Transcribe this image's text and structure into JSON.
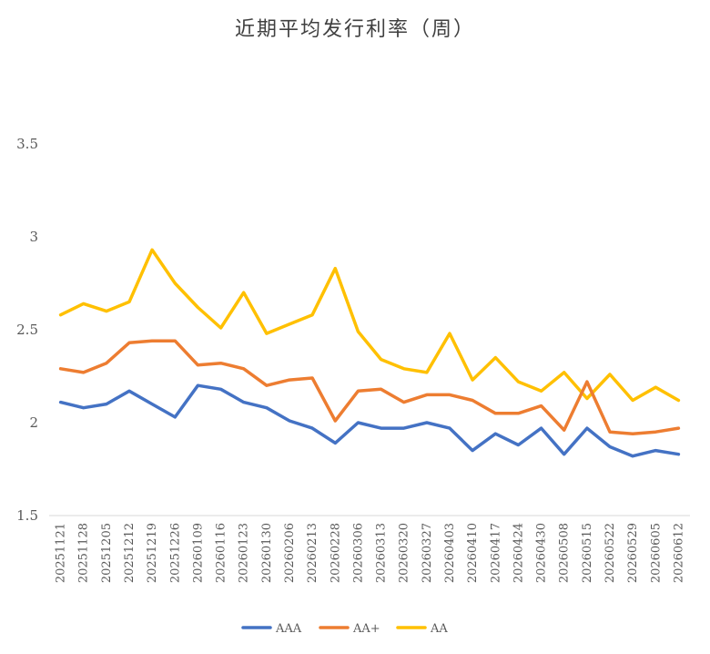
{
  "chart_data": {
    "type": "line",
    "title": "近期平均发行利率（周）",
    "xlabel": "",
    "ylabel": "",
    "ylim": [
      1.5,
      3.5
    ],
    "yticks": [
      "1.5",
      "2",
      "2.5",
      "3",
      "3.5"
    ],
    "grid": false,
    "legend_position": "bottom",
    "categories": [
      "20251121",
      "20251128",
      "20251205",
      "20251212",
      "20251219",
      "20251226",
      "20260109",
      "20260116",
      "20260123",
      "20260130",
      "20260206",
      "20260213",
      "20260228",
      "20260306",
      "20260313",
      "20260320",
      "20260327",
      "20260403",
      "20260410",
      "20260417",
      "20260424",
      "20260430",
      "20260508",
      "20260515",
      "20260522",
      "20260529",
      "20260605",
      "20260612"
    ],
    "series": [
      {
        "name": "AAA",
        "color": "#4472C4",
        "values": [
          2.11,
          2.08,
          2.1,
          2.17,
          2.1,
          2.03,
          2.2,
          2.18,
          2.11,
          2.08,
          2.01,
          1.97,
          1.89,
          2.0,
          1.97,
          1.97,
          2.0,
          1.97,
          1.85,
          1.94,
          1.88,
          1.97,
          1.83,
          1.97,
          1.87,
          1.82,
          1.85,
          1.83
        ]
      },
      {
        "name": "AA+",
        "color": "#ED7D31",
        "values": [
          2.29,
          2.27,
          2.32,
          2.43,
          2.44,
          2.44,
          2.31,
          2.32,
          2.29,
          2.2,
          2.23,
          2.24,
          2.01,
          2.17,
          2.18,
          2.11,
          2.15,
          2.15,
          2.12,
          2.05,
          2.05,
          2.09,
          1.96,
          2.22,
          1.95,
          1.94,
          1.95,
          1.97
        ]
      },
      {
        "name": "AA",
        "color": "#FFC000",
        "values": [
          2.58,
          2.64,
          2.6,
          2.65,
          2.93,
          2.75,
          2.62,
          2.51,
          2.7,
          2.48,
          2.53,
          2.58,
          2.83,
          2.49,
          2.34,
          2.29,
          2.27,
          2.48,
          2.23,
          2.35,
          2.22,
          2.17,
          2.27,
          2.13,
          2.26,
          2.12,
          2.19,
          2.12
        ]
      }
    ]
  }
}
